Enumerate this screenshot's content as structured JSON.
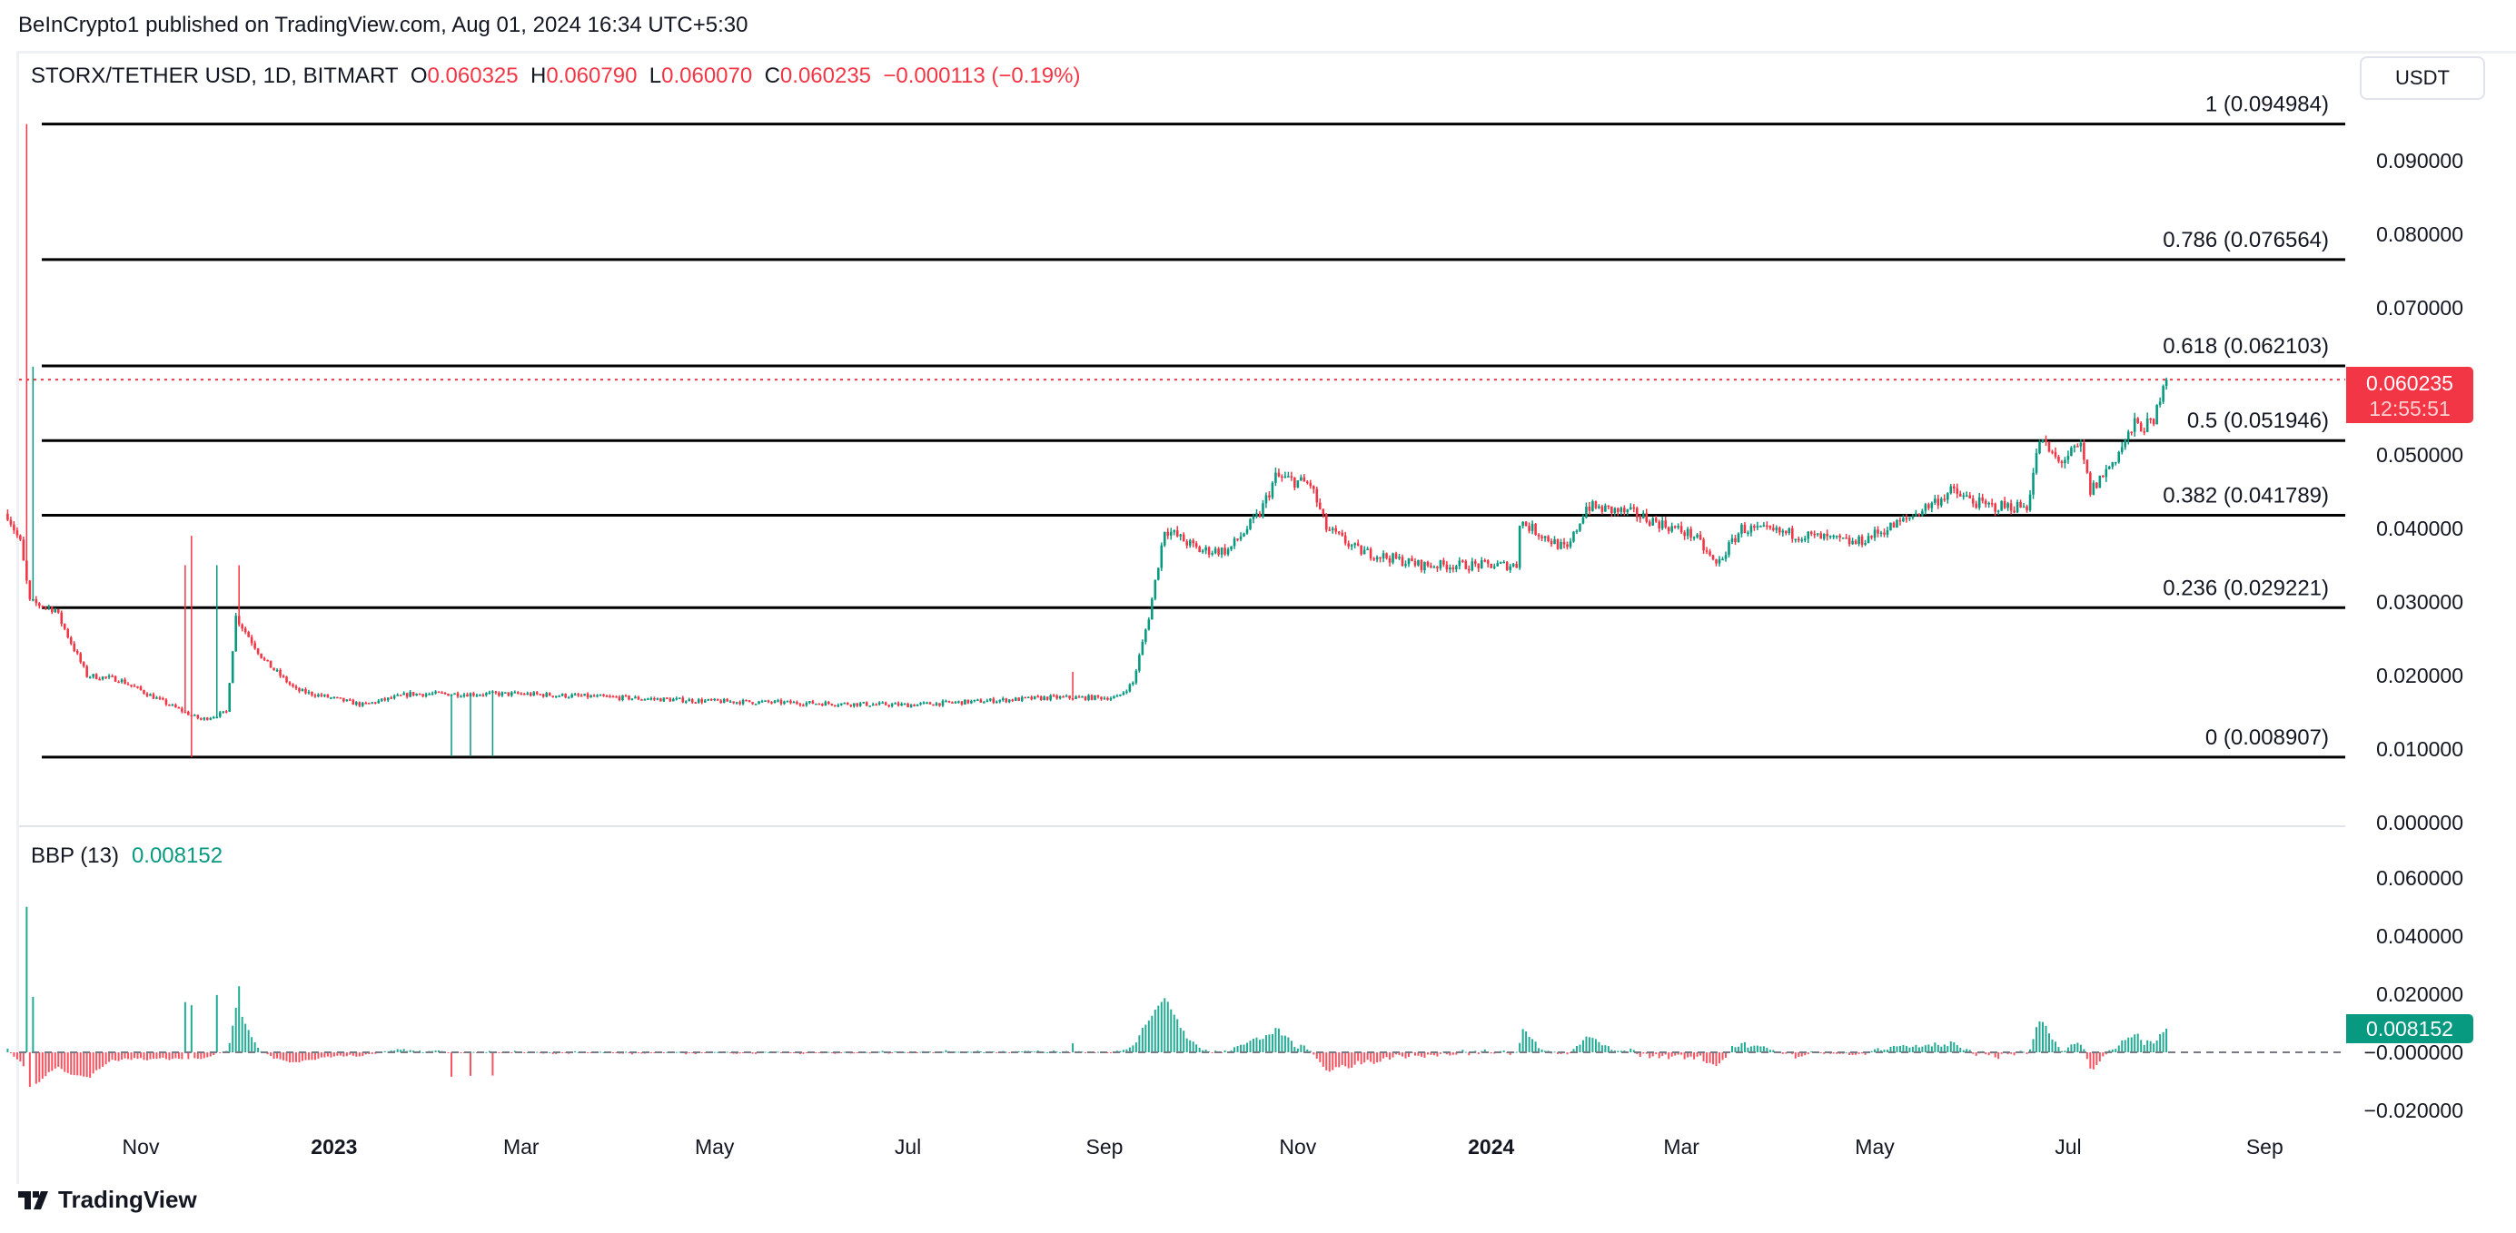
{
  "header": {
    "published": "BeInCrypto1 published on TradingView.com, Aug 01, 2024 16:34 UTC+5:30",
    "symbol": "STORX/TETHER USD, 1D, BITMART",
    "o_label": "O",
    "o": "0.060325",
    "h_label": "H",
    "h": "0.060790",
    "l_label": "L",
    "l": "0.060070",
    "c_label": "C",
    "c": "0.060235",
    "change": "−0.000113 (−0.19%)"
  },
  "currency_button": "USDT",
  "price_badge": {
    "price": "0.060235",
    "countdown": "12:55:51"
  },
  "indicator": {
    "name": "BBP (13)",
    "value": "0.008152",
    "badge": "0.008152"
  },
  "brand": "TradingView",
  "colors": {
    "up": "#089981",
    "down": "#f23645",
    "fib_line": "#000000",
    "bbp_up": "#22ab94",
    "bbp_down": "#f7525f"
  },
  "chart_data": [
    {
      "type": "candlestick",
      "title": "STORX/TETHER USD, 1D, BITMART",
      "ylim": [
        0,
        0.1
      ],
      "y_ticks": [
        "0.090000",
        "0.080000",
        "0.070000",
        "0.060000",
        "0.050000",
        "0.040000",
        "0.030000",
        "0.020000",
        "0.010000",
        "0.000000"
      ],
      "y_tick_values": [
        0.09,
        0.08,
        0.07,
        0.06,
        0.05,
        0.04,
        0.03,
        0.02,
        0.01,
        0.0
      ],
      "x_ticks": [
        {
          "label": "Nov",
          "date": "2022-11-01",
          "bold": false
        },
        {
          "label": "2023",
          "date": "2023-01-01",
          "bold": true
        },
        {
          "label": "Mar",
          "date": "2023-03-01",
          "bold": false
        },
        {
          "label": "May",
          "date": "2023-05-01",
          "bold": false
        },
        {
          "label": "Jul",
          "date": "2023-07-01",
          "bold": false
        },
        {
          "label": "Sep",
          "date": "2023-09-01",
          "bold": false
        },
        {
          "label": "Nov",
          "date": "2023-11-01",
          "bold": false
        },
        {
          "label": "2024",
          "date": "2024-01-01",
          "bold": true
        },
        {
          "label": "Mar",
          "date": "2024-03-01",
          "bold": false
        },
        {
          "label": "May",
          "date": "2024-05-01",
          "bold": false
        },
        {
          "label": "Jul",
          "date": "2024-07-01",
          "bold": false
        },
        {
          "label": "Sep",
          "date": "2024-09-01",
          "bold": false
        }
      ],
      "close_series_approx": [
        [
          "2022-09-20",
          0.042
        ],
        [
          "2022-09-24",
          0.038
        ],
        [
          "2022-09-27",
          0.03
        ],
        [
          "2022-10-05",
          0.029
        ],
        [
          "2022-10-15",
          0.02
        ],
        [
          "2022-10-25",
          0.0195
        ],
        [
          "2022-11-10",
          0.016
        ],
        [
          "2022-11-20",
          0.014
        ],
        [
          "2022-11-28",
          0.015
        ],
        [
          "2022-12-01",
          0.028
        ],
        [
          "2022-12-10",
          0.022
        ],
        [
          "2022-12-20",
          0.018
        ],
        [
          "2023-01-10",
          0.016
        ],
        [
          "2023-01-25",
          0.0175
        ],
        [
          "2023-03-01",
          0.0175
        ],
        [
          "2023-05-01",
          0.0165
        ],
        [
          "2023-07-01",
          0.016
        ],
        [
          "2023-08-15",
          0.017
        ],
        [
          "2023-09-05",
          0.017
        ],
        [
          "2023-09-10",
          0.019
        ],
        [
          "2023-09-15",
          0.028
        ],
        [
          "2023-09-20",
          0.04
        ],
        [
          "2023-10-01",
          0.037
        ],
        [
          "2023-10-10",
          0.037
        ],
        [
          "2023-10-20",
          0.042
        ],
        [
          "2023-10-25",
          0.047
        ],
        [
          "2023-11-05",
          0.046
        ],
        [
          "2023-11-10",
          0.04
        ],
        [
          "2023-11-20",
          0.037
        ],
        [
          "2023-12-10",
          0.035
        ],
        [
          "2023-12-25",
          0.035
        ],
        [
          "2024-01-09",
          0.035
        ],
        [
          "2024-01-10",
          0.041
        ],
        [
          "2024-01-25",
          0.037
        ],
        [
          "2024-01-31",
          0.043
        ],
        [
          "2024-02-15",
          0.042
        ],
        [
          "2024-03-05",
          0.039
        ],
        [
          "2024-03-12",
          0.035
        ],
        [
          "2024-03-20",
          0.04
        ],
        [
          "2024-04-10",
          0.039
        ],
        [
          "2024-04-25",
          0.038
        ],
        [
          "2024-05-10",
          0.041
        ],
        [
          "2024-05-25",
          0.045
        ],
        [
          "2024-06-05",
          0.043
        ],
        [
          "2024-06-18",
          0.043
        ],
        [
          "2024-06-22",
          0.052
        ],
        [
          "2024-06-28",
          0.049
        ],
        [
          "2024-07-05",
          0.051
        ],
        [
          "2024-07-08",
          0.045
        ],
        [
          "2024-07-15",
          0.049
        ],
        [
          "2024-07-22",
          0.054
        ],
        [
          "2024-07-28",
          0.054
        ],
        [
          "2024-07-31",
          0.0603
        ],
        [
          "2024-08-01",
          0.060235
        ]
      ],
      "wick_extremes": [
        {
          "date": "2022-09-26",
          "high": 0.094984
        },
        {
          "date": "2022-09-28",
          "high": 0.062
        },
        {
          "date": "2022-11-15",
          "high": 0.035
        },
        {
          "date": "2022-11-17",
          "high": 0.039,
          "low": 0.008907
        },
        {
          "date": "2022-11-25",
          "high": 0.035
        },
        {
          "date": "2022-12-02",
          "high": 0.035
        },
        {
          "date": "2023-02-07",
          "low": 0.009
        },
        {
          "date": "2023-02-13",
          "low": 0.009
        },
        {
          "date": "2023-02-20",
          "low": 0.009
        },
        {
          "date": "2023-08-22",
          "high": 0.0205
        }
      ],
      "fib_levels": [
        {
          "level": "1",
          "price": 0.094984,
          "label": "1 (0.094984)"
        },
        {
          "level": "0.786",
          "price": 0.076564,
          "label": "0.786 (0.076564)"
        },
        {
          "level": "0.618",
          "price": 0.062103,
          "label": "0.618 (0.062103)"
        },
        {
          "level": "0.5",
          "price": 0.051946,
          "label": "0.5 (0.051946)"
        },
        {
          "level": "0.382",
          "price": 0.041789,
          "label": "0.382 (0.041789)"
        },
        {
          "level": "0.236",
          "price": 0.029221,
          "label": "0.236 (0.029221)"
        },
        {
          "level": "0",
          "price": 0.008907,
          "label": "0 (0.008907)"
        }
      ],
      "last_price": 0.060235
    },
    {
      "type": "bar",
      "title": "BBP (13)",
      "ylim": [
        -0.025,
        0.065
      ],
      "y_ticks": [
        "0.060000",
        "0.040000",
        "0.020000",
        "−0.000000",
        "−0.020000"
      ],
      "y_tick_values": [
        0.06,
        0.04,
        0.02,
        0,
        -0.02
      ],
      "last_value": 0.008152
    }
  ]
}
